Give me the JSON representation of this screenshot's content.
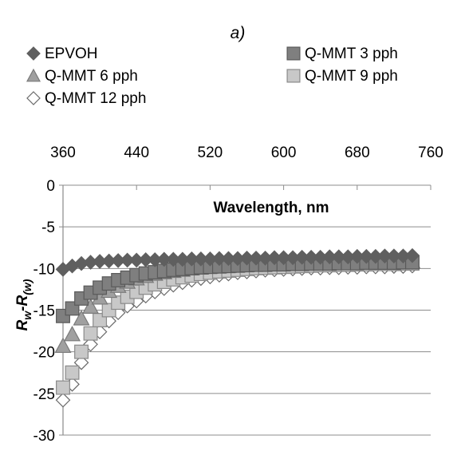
{
  "chart_data": {
    "type": "scatter",
    "panel_label": "a)",
    "xlabel": "Wavelength, nm",
    "ylabel": "R",
    "ylabel_sub_1": "w",
    "ylabel_mid": "-R",
    "ylabel_sub_2": "(w)",
    "xlim": [
      360,
      760
    ],
    "ylim": [
      -30,
      0
    ],
    "x_ticks": [
      360,
      440,
      520,
      600,
      680,
      760
    ],
    "y_ticks": [
      0,
      -5,
      -10,
      -15,
      -20,
      -25,
      -30
    ],
    "x_axis_position": "top",
    "grid": "horizontal",
    "legend_position": "top",
    "x": [
      360,
      370,
      380,
      390,
      400,
      410,
      420,
      430,
      440,
      450,
      460,
      470,
      480,
      490,
      500,
      510,
      520,
      530,
      540,
      550,
      560,
      570,
      580,
      590,
      600,
      610,
      620,
      630,
      640,
      650,
      660,
      670,
      680,
      690,
      700,
      710,
      720,
      730,
      740
    ],
    "series": [
      {
        "name": "EPVOH",
        "marker": "diamond",
        "fill": "#5f5f5f",
        "stroke": "#5f5f5f",
        "values": [
          -10.1,
          -9.7,
          -9.4,
          -9.25,
          -9.15,
          -9.1,
          -9.05,
          -9.0,
          -9.0,
          -8.95,
          -8.95,
          -8.9,
          -8.9,
          -8.9,
          -8.85,
          -8.85,
          -8.85,
          -8.8,
          -8.8,
          -8.8,
          -8.75,
          -8.75,
          -8.75,
          -8.7,
          -8.7,
          -8.7,
          -8.65,
          -8.65,
          -8.65,
          -8.6,
          -8.6,
          -8.6,
          -8.55,
          -8.55,
          -8.55,
          -8.5,
          -8.5,
          -8.5,
          -8.45
        ]
      },
      {
        "name": "Q-MMT 3 pph",
        "marker": "square",
        "fill": "#7f7f7f",
        "stroke": "#5a5a5a",
        "values": [
          -15.7,
          -14.8,
          -13.6,
          -12.9,
          -12.3,
          -11.8,
          -11.4,
          -11.1,
          -10.8,
          -10.6,
          -10.45,
          -10.3,
          -10.15,
          -10.05,
          -9.95,
          -9.85,
          -9.8,
          -9.75,
          -9.7,
          -9.65,
          -9.6,
          -9.55,
          -9.55,
          -9.5,
          -9.5,
          -9.45,
          -9.45,
          -9.4,
          -9.4,
          -9.4,
          -9.35,
          -9.35,
          -9.35,
          -9.3,
          -9.3,
          -9.3,
          -9.3,
          -9.25,
          -9.25
        ]
      },
      {
        "name": "Q-MMT 6 pph",
        "marker": "triangle",
        "fill": "#a0a0a0",
        "stroke": "#7a7a7a",
        "values": [
          -19.3,
          -17.9,
          -16.0,
          -14.6,
          -13.5,
          -12.7,
          -12.1,
          -11.6,
          -11.2,
          -10.9,
          -10.65,
          -10.45,
          -10.3,
          -10.15,
          -10.0,
          -9.9,
          -9.8,
          -9.75,
          -9.7,
          -9.65,
          -9.6,
          -9.55,
          -9.5,
          -9.5,
          -9.45,
          -9.45,
          -9.4,
          -9.4,
          -9.35,
          -9.35,
          -9.35,
          -9.3,
          -9.3,
          -9.3,
          -9.25,
          -9.25,
          -9.25,
          -9.2,
          -9.2
        ]
      },
      {
        "name": "Q-MMT 9 pph",
        "marker": "square",
        "fill": "#c8c8c8",
        "stroke": "#8a8a8a",
        "values": [
          -24.3,
          -22.5,
          -20.0,
          -17.8,
          -16.2,
          -15.0,
          -14.1,
          -13.4,
          -12.8,
          -12.3,
          -11.9,
          -11.6,
          -11.3,
          -11.05,
          -10.85,
          -10.65,
          -10.5,
          -10.35,
          -10.25,
          -10.15,
          -10.05,
          -9.95,
          -9.9,
          -9.85,
          -9.8,
          -9.75,
          -9.7,
          -9.65,
          -9.6,
          -9.6,
          -9.55,
          -9.55,
          -9.5,
          -9.5,
          -9.45,
          -9.45,
          -9.45,
          -9.4,
          -9.4
        ]
      },
      {
        "name": "Q-MMT 12 pph",
        "marker": "diamond",
        "fill": "#ffffff",
        "stroke": "#6a6a6a",
        "values": [
          -25.8,
          -23.9,
          -21.3,
          -19.1,
          -17.6,
          -16.3,
          -15.3,
          -14.5,
          -13.9,
          -13.3,
          -12.8,
          -12.4,
          -12.0,
          -11.7,
          -11.4,
          -11.2,
          -11.0,
          -10.8,
          -10.65,
          -10.5,
          -10.4,
          -10.3,
          -10.2,
          -10.15,
          -10.1,
          -10.05,
          -10.0,
          -9.95,
          -9.95,
          -9.9,
          -9.9,
          -9.85,
          -9.85,
          -9.8,
          -9.8,
          -9.8,
          -9.75,
          -9.75,
          -9.7
        ]
      }
    ]
  }
}
